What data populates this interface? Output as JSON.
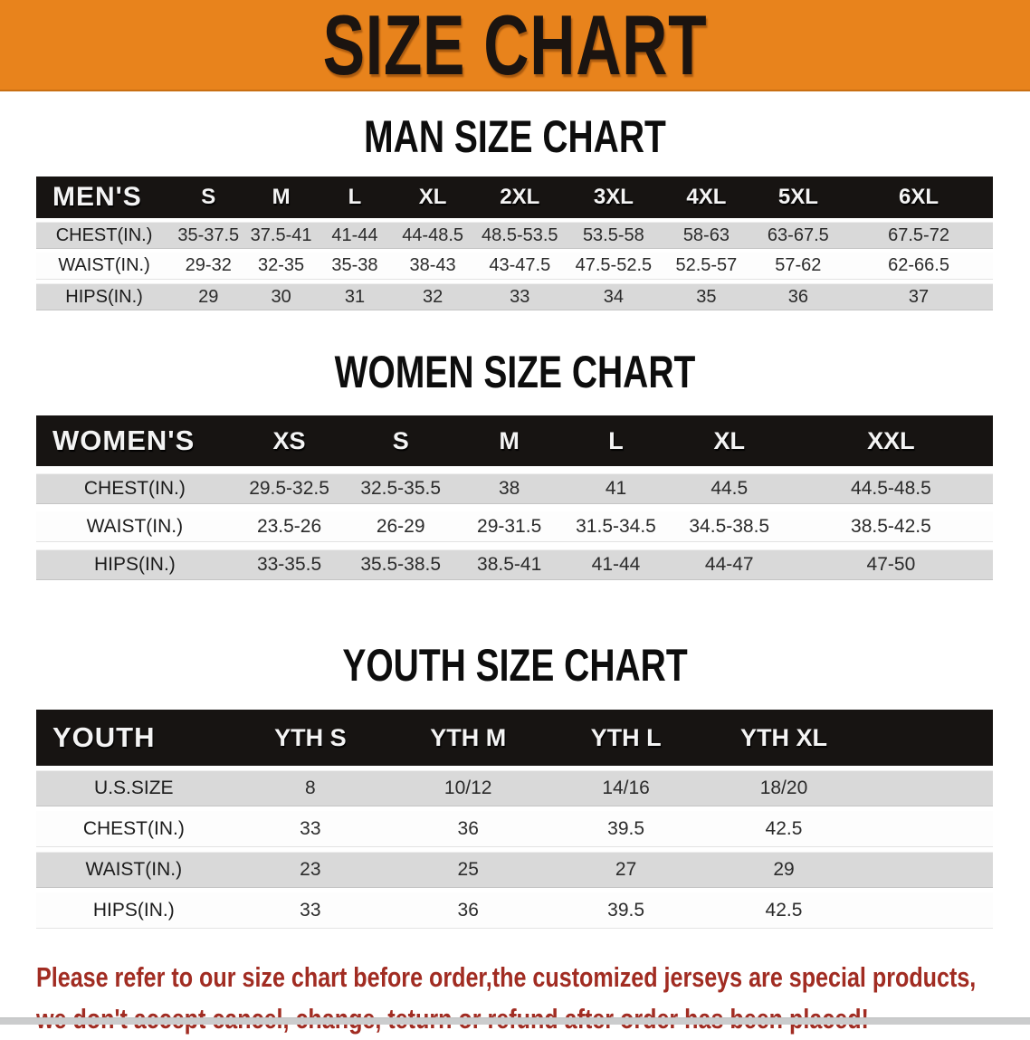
{
  "banner": {
    "title": "SIZE CHART",
    "bg_color": "#e8831c",
    "text_color": "#1b1410"
  },
  "colors": {
    "table_header_bar": "#171412",
    "row_stripe": "#d9d9d9",
    "disclaimer_text": "#a12c22"
  },
  "sections": [
    {
      "heading": "MAN SIZE CHART",
      "table": {
        "header": {
          "label": "MEN'S",
          "sizes": [
            "S",
            "M",
            "L",
            "XL",
            "2XL",
            "3XL",
            "4XL",
            "5XL",
            "6XL"
          ]
        },
        "rows": [
          {
            "label": "CHEST(IN.)",
            "values": [
              "35-37.5",
              "37.5-41",
              "41-44",
              "44-48.5",
              "48.5-53.5",
              "53.5-58",
              "58-63",
              "63-67.5",
              "67.5-72"
            ]
          },
          {
            "label": "WAIST(IN.)",
            "values": [
              "29-32",
              "32-35",
              "35-38",
              "38-43",
              "43-47.5",
              "47.5-52.5",
              "52.5-57",
              "57-62",
              "62-66.5"
            ]
          },
          {
            "label": "HIPS(IN.)",
            "values": [
              "29",
              "30",
              "31",
              "32",
              "33",
              "34",
              "35",
              "36",
              "37"
            ]
          }
        ]
      }
    },
    {
      "heading": "WOMEN SIZE CHART",
      "table": {
        "header": {
          "label": "WOMEN'S",
          "sizes": [
            "XS",
            "S",
            "M",
            "L",
            "XL",
            "XXL"
          ]
        },
        "rows": [
          {
            "label": "CHEST(IN.)",
            "values": [
              "29.5-32.5",
              "32.5-35.5",
              "38",
              "41",
              "44.5",
              "44.5-48.5"
            ]
          },
          {
            "label": "WAIST(IN.)",
            "values": [
              "23.5-26",
              "26-29",
              "29-31.5",
              "31.5-34.5",
              "34.5-38.5",
              "38.5-42.5"
            ]
          },
          {
            "label": "HIPS(IN.)",
            "values": [
              "33-35.5",
              "35.5-38.5",
              "38.5-41",
              "41-44",
              "44-47",
              "47-50"
            ]
          }
        ]
      }
    },
    {
      "heading": "YOUTH SIZE CHART",
      "table": {
        "header": {
          "label": "YOUTH",
          "sizes": [
            "YTH S",
            "YTH M",
            "YTH L",
            "YTH XL"
          ]
        },
        "rows": [
          {
            "label": "U.S.SIZE",
            "values": [
              "8",
              "10/12",
              "14/16",
              "18/20"
            ]
          },
          {
            "label": "CHEST(IN.)",
            "values": [
              "33",
              "36",
              "39.5",
              "42.5"
            ]
          },
          {
            "label": "WAIST(IN.)",
            "values": [
              "23",
              "25",
              "27",
              "29"
            ]
          },
          {
            "label": "HIPS(IN.)",
            "values": [
              "33",
              "36",
              "39.5",
              "42.5"
            ]
          }
        ]
      }
    }
  ],
  "disclaimer": {
    "line1": "Please refer to our size chart before order,the customized jerseys are special products,",
    "line2": "we don't accept cancel, change, teturn or refund after order has been placed!"
  }
}
